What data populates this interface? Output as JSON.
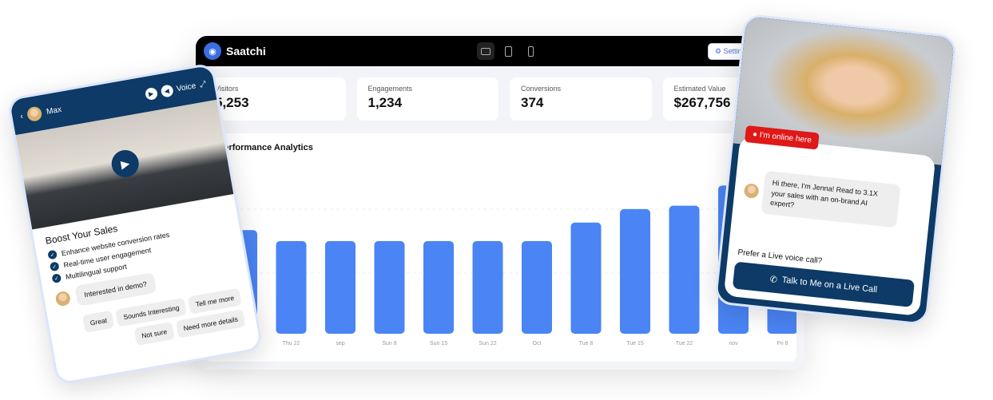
{
  "dashboard": {
    "brand": "Saatchi",
    "settings_label": "Settings",
    "stats": [
      {
        "label": "Visitors",
        "value": "5,253"
      },
      {
        "label": "Engagements",
        "value": "1,234"
      },
      {
        "label": "Conversions",
        "value": "374"
      },
      {
        "label": "Estimated Value",
        "value": "$267,756"
      }
    ],
    "panel_title": "Performance Analytics"
  },
  "chart_data": {
    "type": "bar",
    "title": "Performance Analytics",
    "categories": [
      "",
      "Thu 22",
      "sep",
      "Sun 8",
      "Sun 15",
      "Sun 22",
      "Oct",
      "Tue 8",
      "Tue 15",
      "Tue 22",
      "nov",
      "Fri 8"
    ],
    "values": [
      123,
      110,
      110,
      110,
      110,
      110,
      110,
      132,
      148,
      152,
      176,
      null
    ],
    "color": "#4a84f5",
    "grid": true,
    "ylim": [
      0,
      200
    ]
  },
  "left_widget": {
    "agent_name": "Max",
    "voice_label": "Voice",
    "heading": "Boost Your Sales",
    "features": [
      "Enhance website conversion rates",
      "Real-time user engagement",
      "Multilingual support"
    ],
    "message": "Interested in demo?",
    "chips": [
      "Great",
      "Sounds Interesting",
      "Tell me more",
      "Not sure",
      "Need more details"
    ],
    "accent": "#0d3a66"
  },
  "right_widget": {
    "status": "I'm online here",
    "message": "Hi there, I'm Jenna! Read to 3.1X your sales with an on-brand AI expert?",
    "prompt": "Prefer a Live voice call?",
    "call_button": "Talk to Me on a Live Call",
    "status_color": "#e01818"
  }
}
